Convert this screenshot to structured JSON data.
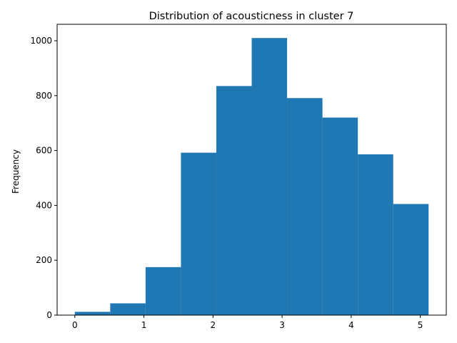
{
  "chart_data": {
    "type": "bar",
    "title": "Distribution of acousticness in cluster 7",
    "xlabel": "",
    "ylabel": "Frequency",
    "bar_color": "#1f77b4",
    "bin_edges": [
      0,
      0.512,
      1.024,
      1.536,
      2.048,
      2.56,
      3.072,
      3.584,
      4.096,
      4.608,
      5.12
    ],
    "values": [
      12,
      43,
      175,
      592,
      835,
      1010,
      791,
      720,
      586,
      405
    ],
    "xlim": [
      -0.256,
      5.376
    ],
    "ylim": [
      0,
      1060
    ],
    "x_ticks": [
      0,
      1,
      2,
      3,
      4,
      5
    ],
    "x_tick_labels": [
      "0",
      "1",
      "2",
      "3",
      "4",
      "5"
    ],
    "y_ticks": [
      0,
      200,
      400,
      600,
      800,
      1000
    ],
    "y_tick_labels": [
      "0",
      "200",
      "400",
      "600",
      "800",
      "1000"
    ],
    "grid": false,
    "legend": "none"
  }
}
